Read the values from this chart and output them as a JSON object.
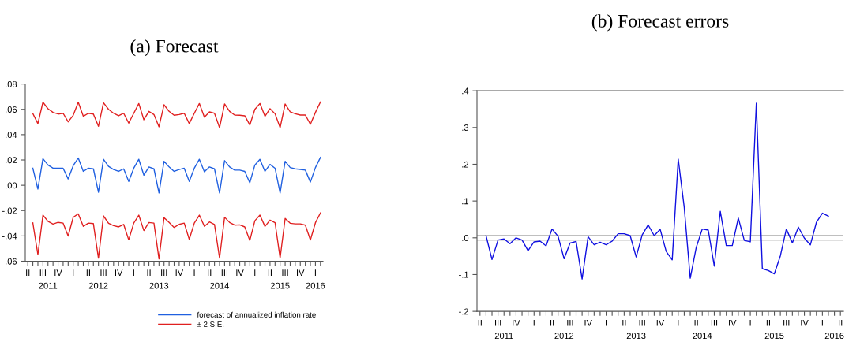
{
  "chart_data": [
    {
      "type": "line",
      "title": "(a) Forecast",
      "categories": [
        "II",
        null,
        null,
        "III",
        "\n2011",
        null,
        "IV",
        null,
        null,
        "I",
        null,
        null,
        "II",
        null,
        "\n2012",
        "III",
        null,
        null,
        "IV",
        null,
        null,
        "I",
        null,
        null,
        "II",
        null,
        "\n2013",
        "III",
        null,
        null,
        "IV",
        null,
        null,
        "I",
        null,
        null,
        "II",
        null,
        "\n2014",
        "III",
        null,
        null,
        "IV",
        null,
        null,
        "I",
        null,
        null,
        "II",
        null,
        "\n2015",
        "III",
        null,
        null,
        "IV",
        null,
        null,
        "I\n2016",
        null
      ],
      "series": [
        {
          "name": "forecast of annualized inflation rate",
          "color": "#2060e0",
          "values": [
            null,
            0.0135,
            -0.003,
            0.021,
            0.016,
            0.0135,
            0.0135,
            0.0135,
            0.005,
            0.0155,
            0.0215,
            0.011,
            0.0135,
            0.013,
            -0.0055,
            0.0205,
            0.015,
            0.0125,
            0.011,
            0.013,
            0.003,
            0.0135,
            0.0205,
            0.008,
            0.0145,
            0.013,
            -0.006,
            0.019,
            0.0145,
            0.011,
            0.0125,
            0.0135,
            0.003,
            0.0135,
            0.0205,
            0.0107,
            0.0145,
            0.013,
            -0.006,
            0.0195,
            0.0145,
            0.012,
            0.012,
            0.011,
            0.002,
            0.016,
            0.0205,
            0.011,
            0.0165,
            0.0135,
            -0.006,
            0.019,
            0.014,
            0.013,
            0.0125,
            0.012,
            0.0025,
            0.014,
            0.022
          ]
        },
        {
          "name": "± 2 S.E.",
          "color": "#e02020",
          "values": [
            null,
            0.0567,
            0.0487,
            0.0656,
            0.0605,
            0.0576,
            0.0563,
            0.0569,
            0.0501,
            0.0553,
            0.0656,
            0.0545,
            0.0569,
            0.0563,
            0.0466,
            0.0652,
            0.06,
            0.0569,
            0.0549,
            0.0569,
            0.0491,
            0.0569,
            0.0646,
            0.0518,
            0.0584,
            0.0559,
            0.0462,
            0.0636,
            0.0584,
            0.0553,
            0.0559,
            0.0569,
            0.0487,
            0.0569,
            0.0646,
            0.0538,
            0.058,
            0.0569,
            0.0455,
            0.0642,
            0.0584,
            0.0555,
            0.0553,
            0.0549,
            0.0476,
            0.06,
            0.0646,
            0.0545,
            0.0605,
            0.0565,
            0.0455,
            0.0642,
            0.058,
            0.0565,
            0.0555,
            0.0555,
            0.0482,
            0.0576,
            0.0658
          ]
        },
        {
          "color": "#e02020",
          "values": [
            null,
            -0.0297,
            -0.0547,
            -0.0236,
            -0.0285,
            -0.0306,
            -0.0293,
            -0.0299,
            -0.0401,
            -0.0253,
            -0.0226,
            -0.0325,
            -0.0299,
            -0.0303,
            -0.0576,
            -0.0242,
            -0.03,
            -0.0319,
            -0.0329,
            -0.0309,
            -0.0431,
            -0.0299,
            -0.0236,
            -0.0358,
            -0.0294,
            -0.0299,
            -0.0582,
            -0.0256,
            -0.0294,
            -0.0333,
            -0.0309,
            -0.0299,
            -0.0427,
            -0.0299,
            -0.0236,
            -0.0324,
            -0.029,
            -0.0309,
            -0.0575,
            -0.0252,
            -0.0294,
            -0.0315,
            -0.0313,
            -0.0329,
            -0.0436,
            -0.028,
            -0.0236,
            -0.0325,
            -0.0275,
            -0.0295,
            -0.0575,
            -0.0262,
            -0.03,
            -0.0305,
            -0.0305,
            -0.0315,
            -0.0432,
            -0.0296,
            -0.0218
          ]
        }
      ],
      "ylim": [
        -0.06,
        0.08
      ],
      "yticks": [
        {
          "value": -0.06,
          "label": "-.06"
        },
        {
          "value": -0.04,
          "label": "-.04"
        },
        {
          "value": -0.02,
          "label": "-.02"
        },
        {
          "value": 0,
          "label": ".00"
        },
        {
          "value": 0.02,
          "label": ".02"
        },
        {
          "value": 0.04,
          "label": ".04"
        },
        {
          "value": 0.06,
          "label": ".06"
        },
        {
          "value": 0.08,
          "label": ".08"
        }
      ],
      "legend": "bottom right"
    },
    {
      "type": "line",
      "title": "(b) Forecast errors",
      "categories": [
        "II",
        null,
        null,
        "III",
        "\n2011",
        null,
        "IV",
        null,
        null,
        "I",
        null,
        null,
        "II",
        null,
        "\n2012",
        "III",
        null,
        null,
        "IV",
        null,
        null,
        "I",
        null,
        null,
        "II",
        null,
        "\n2013",
        "III",
        null,
        null,
        "IV",
        null,
        null,
        "I",
        null,
        null,
        "II",
        "\n2014",
        null,
        "III",
        null,
        null,
        "IV",
        null,
        null,
        "I",
        null,
        null,
        "II",
        "\n2015",
        null,
        "III",
        null,
        null,
        "IV",
        null,
        null,
        "I",
        null,
        "\n2016",
        "II"
      ],
      "series": [
        {
          "color": "#1010e0",
          "values": [
            null,
            0.006,
            -0.059,
            -0.006,
            -0.003,
            -0.016,
            0.0,
            -0.006,
            -0.035,
            -0.011,
            -0.009,
            -0.022,
            0.024,
            0.004,
            -0.057,
            -0.014,
            -0.01,
            -0.112,
            0.003,
            -0.019,
            -0.012,
            -0.019,
            -0.009,
            0.011,
            0.011,
            0.006,
            -0.052,
            0.008,
            0.035,
            0.006,
            0.023,
            -0.037,
            -0.06,
            0.214,
            0.083,
            -0.11,
            -0.026,
            0.024,
            0.021,
            -0.077,
            0.072,
            -0.021,
            -0.021,
            0.054,
            -0.007,
            -0.011,
            0.366,
            -0.084,
            -0.089,
            -0.098,
            -0.049,
            0.024,
            -0.014,
            0.029,
            -0.001,
            -0.019,
            0.042,
            0.067,
            0.059,
            null,
            null
          ]
        }
      ],
      "ylim": [
        -0.2,
        0.4
      ],
      "yticks": [
        {
          "value": -0.2,
          "label": "-.2"
        },
        {
          "value": -0.1,
          "label": "-.1"
        },
        {
          "value": 0,
          "label": ".0"
        },
        {
          "value": 0.1,
          "label": ".1"
        },
        {
          "value": 0.2,
          "label": ".2"
        },
        {
          "value": 0.3,
          "label": ".3"
        },
        {
          "value": 0.4,
          "label": ".4"
        }
      ],
      "ref_lines": [
        {
          "axis": "y",
          "value": 0.006,
          "color": "#808080"
        },
        {
          "axis": "y",
          "value": -0.006,
          "color": "#808080"
        }
      ]
    }
  ]
}
